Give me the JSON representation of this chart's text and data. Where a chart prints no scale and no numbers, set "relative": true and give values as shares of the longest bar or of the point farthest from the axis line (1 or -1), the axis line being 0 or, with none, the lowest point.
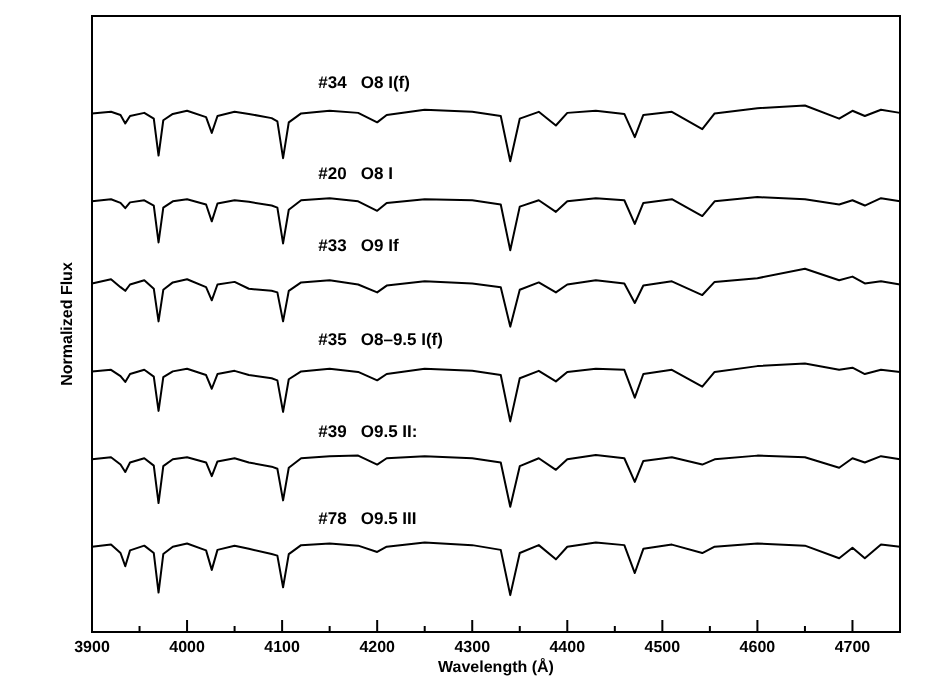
{
  "chart_data": {
    "type": "line",
    "relative": true,
    "xlabel": "Wavelength (Å)",
    "ylabel": "Normalized Flux",
    "x": [
      3900,
      3920,
      3930,
      3935,
      3940,
      3955,
      3965,
      3970,
      3975,
      3985,
      4000,
      4020,
      4026,
      4032,
      4050,
      4065,
      4089,
      4095,
      4101,
      4107,
      4120,
      4150,
      4180,
      4200,
      4210,
      4250,
      4300,
      4330,
      4340,
      4350,
      4370,
      4388,
      4400,
      4430,
      4460,
      4471,
      4480,
      4510,
      4542,
      4555,
      4600,
      4650,
      4686,
      4700,
      4713,
      4730,
      4750
    ],
    "xlim": [
      3900,
      4750
    ],
    "xticks": [
      3900,
      {
        "value": 3950,
        "label": null
      },
      4000,
      {
        "value": 4050,
        "label": null
      },
      4100,
      {
        "value": 4150,
        "label": null
      },
      4200,
      {
        "value": 4250,
        "label": null
      },
      4300,
      {
        "value": 4350,
        "label": null
      },
      4400,
      {
        "value": 4450,
        "label": null
      },
      4500,
      {
        "value": 4550,
        "label": null
      },
      4600,
      {
        "value": 4650,
        "label": null
      },
      4700
    ],
    "grid": false,
    "series": [
      {
        "name": "#34   O8 I(f)",
        "color": "#000000",
        "values": [
          0.985,
          0.988,
          0.982,
          0.966,
          0.98,
          0.986,
          0.975,
          0.905,
          0.972,
          0.984,
          0.99,
          0.978,
          0.948,
          0.98,
          0.988,
          0.984,
          0.976,
          0.97,
          0.9,
          0.968,
          0.985,
          0.99,
          0.986,
          0.968,
          0.982,
          0.992,
          0.988,
          0.98,
          0.894,
          0.975,
          0.988,
          0.962,
          0.986,
          0.99,
          0.984,
          0.94,
          0.982,
          0.988,
          0.955,
          0.985,
          0.995,
          1.0,
          0.975,
          0.99,
          0.98,
          0.992,
          0.986
        ]
      },
      {
        "name": "#20   O8 I",
        "color": "#000000",
        "values": [
          0.818,
          0.822,
          0.815,
          0.805,
          0.816,
          0.82,
          0.81,
          0.74,
          0.806,
          0.818,
          0.822,
          0.812,
          0.78,
          0.814,
          0.82,
          0.817,
          0.81,
          0.806,
          0.738,
          0.802,
          0.82,
          0.824,
          0.818,
          0.8,
          0.815,
          0.822,
          0.82,
          0.812,
          0.725,
          0.808,
          0.82,
          0.798,
          0.818,
          0.824,
          0.82,
          0.775,
          0.815,
          0.822,
          0.79,
          0.818,
          0.826,
          0.822,
          0.812,
          0.82,
          0.81,
          0.824,
          0.818
        ]
      },
      {
        "name": "#33   O9 If",
        "color": "#000000",
        "values": [
          0.662,
          0.67,
          0.655,
          0.648,
          0.66,
          0.668,
          0.652,
          0.59,
          0.65,
          0.664,
          0.67,
          0.655,
          0.63,
          0.66,
          0.665,
          0.652,
          0.648,
          0.645,
          0.59,
          0.648,
          0.664,
          0.668,
          0.66,
          0.645,
          0.658,
          0.666,
          0.662,
          0.655,
          0.58,
          0.65,
          0.664,
          0.645,
          0.66,
          0.668,
          0.662,
          0.625,
          0.658,
          0.666,
          0.64,
          0.665,
          0.672,
          0.69,
          0.668,
          0.675,
          0.662,
          0.666,
          0.66
        ]
      },
      {
        "name": "#35   O8–9.5 I(f)",
        "color": "#000000",
        "values": [
          0.495,
          0.498,
          0.486,
          0.475,
          0.49,
          0.498,
          0.485,
          0.42,
          0.484,
          0.495,
          0.5,
          0.488,
          0.462,
          0.49,
          0.496,
          0.488,
          0.482,
          0.478,
          0.418,
          0.48,
          0.495,
          0.5,
          0.494,
          0.478,
          0.49,
          0.5,
          0.496,
          0.488,
          0.4,
          0.482,
          0.496,
          0.476,
          0.494,
          0.5,
          0.498,
          0.445,
          0.49,
          0.498,
          0.466,
          0.494,
          0.505,
          0.51,
          0.498,
          0.502,
          0.49,
          0.498,
          0.494
        ]
      },
      {
        "name": "#39   O9.5 II:",
        "color": "#000000",
        "values": [
          0.328,
          0.332,
          0.318,
          0.304,
          0.322,
          0.33,
          0.316,
          0.245,
          0.315,
          0.328,
          0.332,
          0.322,
          0.296,
          0.324,
          0.33,
          0.322,
          0.314,
          0.31,
          0.25,
          0.312,
          0.33,
          0.334,
          0.335,
          0.318,
          0.33,
          0.334,
          0.33,
          0.322,
          0.238,
          0.315,
          0.33,
          0.308,
          0.328,
          0.336,
          0.33,
          0.285,
          0.325,
          0.332,
          0.318,
          0.328,
          0.335,
          0.332,
          0.312,
          0.33,
          0.322,
          0.334,
          0.328
        ]
      },
      {
        "name": "#78   O9.5 III",
        "color": "#000000",
        "values": [
          0.162,
          0.166,
          0.15,
          0.125,
          0.155,
          0.164,
          0.15,
          0.075,
          0.148,
          0.162,
          0.168,
          0.155,
          0.118,
          0.156,
          0.164,
          0.158,
          0.148,
          0.145,
          0.085,
          0.148,
          0.165,
          0.168,
          0.164,
          0.152,
          0.162,
          0.17,
          0.165,
          0.156,
          0.07,
          0.15,
          0.165,
          0.138,
          0.162,
          0.17,
          0.165,
          0.112,
          0.158,
          0.166,
          0.15,
          0.162,
          0.168,
          0.164,
          0.14,
          0.16,
          0.14,
          0.166,
          0.162
        ]
      }
    ]
  }
}
